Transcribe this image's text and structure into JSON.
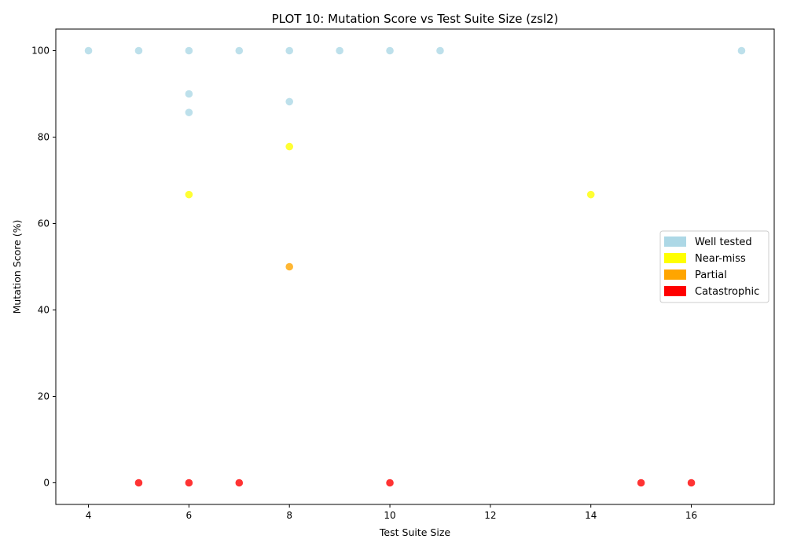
{
  "chart_data": {
    "type": "scatter",
    "title": "PLOT 10: Mutation Score vs Test Suite Size (zsl2)",
    "xlabel": "Test Suite Size",
    "ylabel": "Mutation Score (%)",
    "xlim": [
      3.35,
      17.65
    ],
    "ylim": [
      -5,
      105
    ],
    "xticks": [
      4,
      6,
      8,
      10,
      12,
      14,
      16
    ],
    "yticks": [
      0,
      20,
      40,
      60,
      80,
      100
    ],
    "grid": false,
    "legend_position": "center-right",
    "series": [
      {
        "name": "Well tested",
        "color": "#add8e6",
        "points": [
          {
            "x": 4,
            "y": 100
          },
          {
            "x": 5,
            "y": 100
          },
          {
            "x": 6,
            "y": 100
          },
          {
            "x": 7,
            "y": 100
          },
          {
            "x": 8,
            "y": 100
          },
          {
            "x": 9,
            "y": 100
          },
          {
            "x": 10,
            "y": 100
          },
          {
            "x": 11,
            "y": 100
          },
          {
            "x": 17,
            "y": 100
          },
          {
            "x": 6,
            "y": 90
          },
          {
            "x": 6,
            "y": 85.7
          },
          {
            "x": 8,
            "y": 88.2
          }
        ]
      },
      {
        "name": "Near-miss",
        "color": "#ffff00",
        "points": [
          {
            "x": 8,
            "y": 77.8
          },
          {
            "x": 6,
            "y": 66.7
          },
          {
            "x": 14,
            "y": 66.7
          }
        ]
      },
      {
        "name": "Partial",
        "color": "#ffa500",
        "points": [
          {
            "x": 8,
            "y": 50
          }
        ]
      },
      {
        "name": "Catastrophic",
        "color": "#ff0000",
        "points": [
          {
            "x": 5,
            "y": 0
          },
          {
            "x": 6,
            "y": 0
          },
          {
            "x": 7,
            "y": 0
          },
          {
            "x": 10,
            "y": 0
          },
          {
            "x": 15,
            "y": 0
          },
          {
            "x": 16,
            "y": 0
          }
        ]
      }
    ]
  }
}
